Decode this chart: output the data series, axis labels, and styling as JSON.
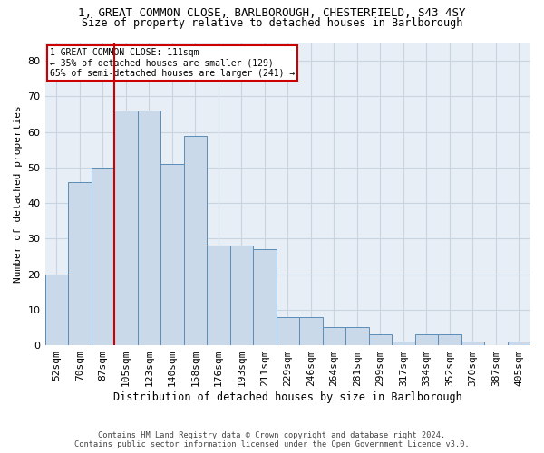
{
  "title_line1": "1, GREAT COMMON CLOSE, BARLBOROUGH, CHESTERFIELD, S43 4SY",
  "title_line2": "Size of property relative to detached houses in Barlborough",
  "xlabel": "Distribution of detached houses by size in Barlborough",
  "ylabel": "Number of detached properties",
  "categories": [
    "52sqm",
    "70sqm",
    "87sqm",
    "105sqm",
    "123sqm",
    "140sqm",
    "158sqm",
    "176sqm",
    "193sqm",
    "211sqm",
    "229sqm",
    "246sqm",
    "264sqm",
    "281sqm",
    "299sqm",
    "317sqm",
    "334sqm",
    "352sqm",
    "370sqm",
    "387sqm",
    "405sqm"
  ],
  "values": [
    20,
    46,
    50,
    66,
    66,
    51,
    59,
    28,
    28,
    27,
    8,
    8,
    5,
    5,
    3,
    1,
    3,
    3,
    1,
    0,
    1
  ],
  "bar_color": "#c9d9ea",
  "bar_edge_color": "#5b8db8",
  "annotation_text_line1": "1 GREAT COMMON CLOSE: 111sqm",
  "annotation_text_line2": "← 35% of detached houses are smaller (129)",
  "annotation_text_line3": "65% of semi-detached houses are larger (241) →",
  "annotation_box_facecolor": "#ffffff",
  "annotation_box_edgecolor": "#cc0000",
  "vline_color": "#cc0000",
  "footer_line1": "Contains HM Land Registry data © Crown copyright and database right 2024.",
  "footer_line2": "Contains public sector information licensed under the Open Government Licence v3.0.",
  "ylim": [
    0,
    85
  ],
  "yticks": [
    0,
    10,
    20,
    30,
    40,
    50,
    60,
    70,
    80
  ],
  "grid_color": "#c8d4e0",
  "background_color": "#e8eef5",
  "vline_x_index": 3.0
}
